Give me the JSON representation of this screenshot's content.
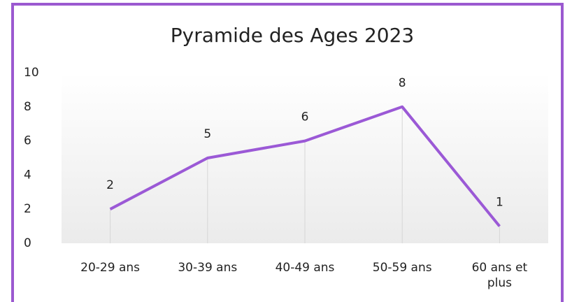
{
  "chart_data": {
    "type": "line",
    "title": "Pyramide des Ages 2023",
    "categories": [
      "20-29 ans",
      "30-39 ans",
      "40-49 ans",
      "50-59 ans",
      "60 ans et plus"
    ],
    "values": [
      2,
      5,
      6,
      8,
      1
    ],
    "color": "#9b59d6",
    "ylim": [
      0,
      10
    ],
    "yticks": [
      0,
      2,
      4,
      6,
      8,
      10
    ],
    "data_labels": true,
    "drop_lines": true
  }
}
